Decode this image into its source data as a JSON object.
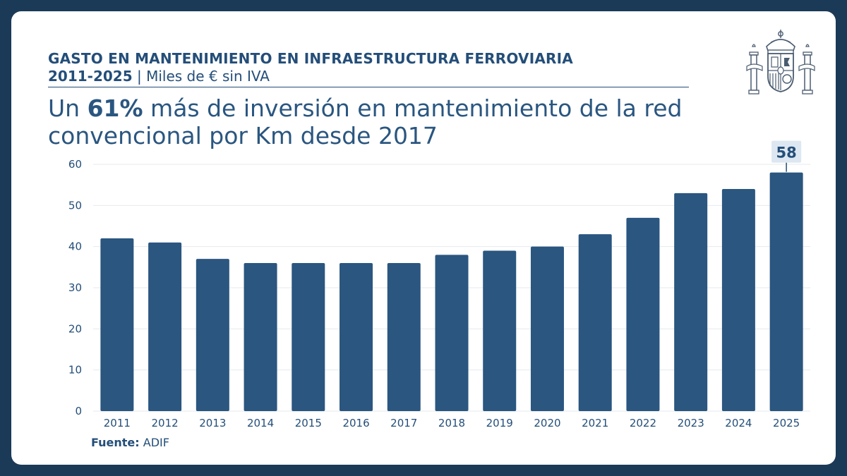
{
  "header": {
    "title": "GASTO EN MANTENIMIENTO EN INFRAESTRUCTURA FERROVIARIA",
    "years": "2011-2025",
    "separator": " | ",
    "unit": "Miles de € sin IVA"
  },
  "headline": {
    "pre": "Un ",
    "bold": "61%",
    "post": " más de inversión en mantenimiento de la red convencional por Km desde 2017"
  },
  "source": {
    "label": "Fuente:",
    "value": "ADIF"
  },
  "crest": {
    "name": "escudo-de-espana",
    "icon": "coat-of-arms"
  },
  "colors": {
    "background": "#1b3a57",
    "bar": "#2a5680",
    "text": "#244e79",
    "grid": "#e6e9ee",
    "callout": "#dde7f1"
  },
  "chart_data": {
    "type": "bar",
    "categories": [
      "2011",
      "2012",
      "2013",
      "2014",
      "2015",
      "2016",
      "2017",
      "2018",
      "2019",
      "2020",
      "2021",
      "2022",
      "2023",
      "2024",
      "2025"
    ],
    "values": [
      42,
      41,
      37,
      36,
      36,
      36,
      36,
      38,
      39,
      40,
      43,
      47,
      53,
      54,
      58
    ],
    "ylim": [
      0,
      60
    ],
    "yticks": [
      0,
      10,
      20,
      30,
      40,
      50,
      60
    ],
    "grid": true,
    "highlight": {
      "category": "2025",
      "label": "58"
    },
    "title": "",
    "xlabel": "",
    "ylabel": ""
  }
}
